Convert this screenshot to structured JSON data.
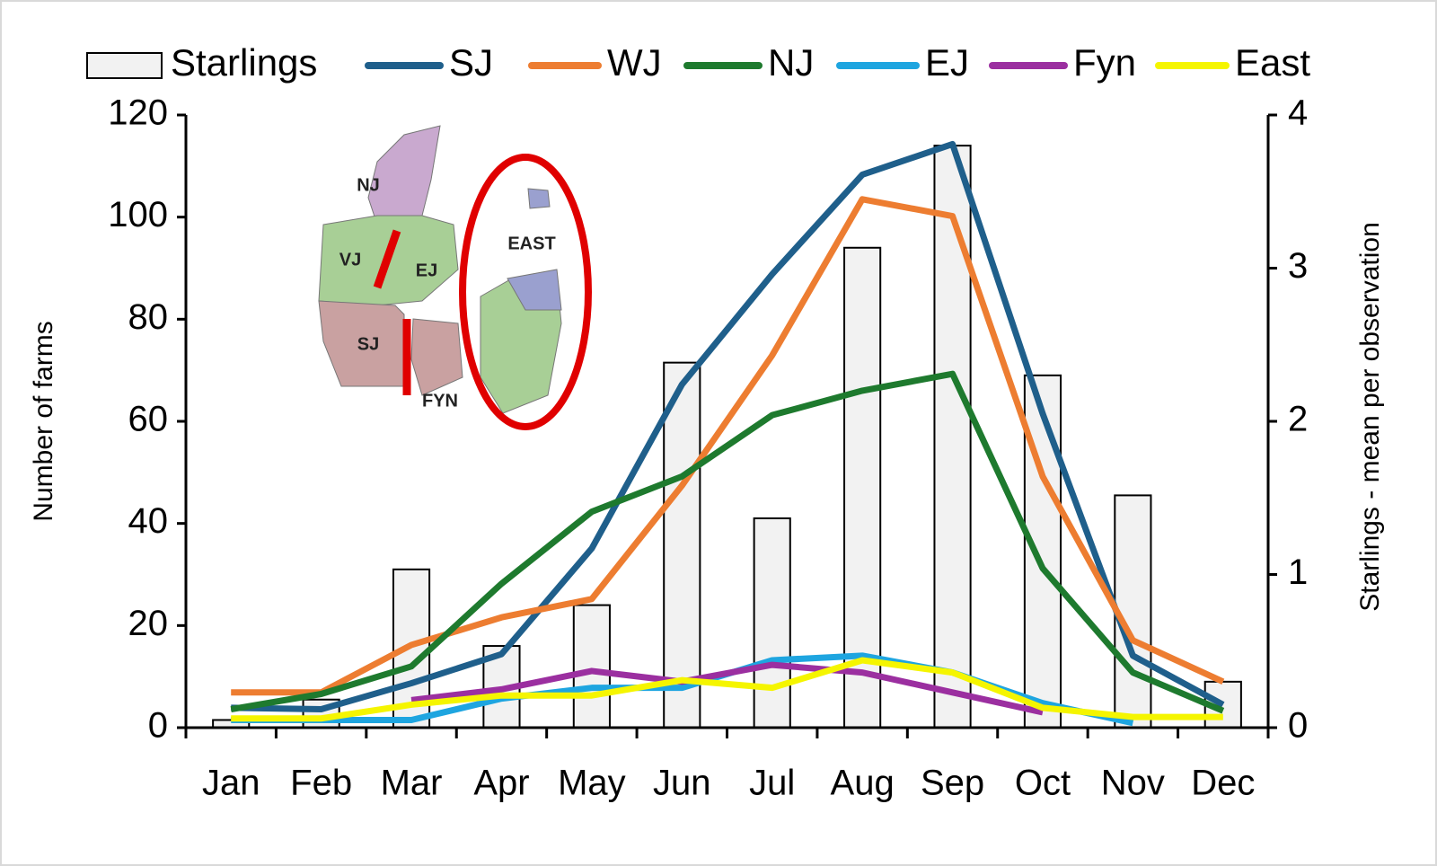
{
  "chart_data": {
    "type": "bar-line",
    "ylabel": "Number of farms",
    "y2label": "Starlings - mean per observation",
    "categories": [
      "Jan",
      "Feb",
      "Mar",
      "Apr",
      "May",
      "Jun",
      "Jul",
      "Aug",
      "Sep",
      "Oct",
      "Nov",
      "Dec"
    ],
    "bar_series": {
      "name": "Starlings",
      "color": "#f2f2f2",
      "values": [
        1.5,
        5.5,
        31,
        16,
        24,
        71.5,
        41,
        94,
        114,
        69,
        45.5,
        9
      ]
    },
    "series": [
      {
        "name": "SJ",
        "color": "#1f5f8b",
        "axis": "y2",
        "values": [
          0.13,
          0.12,
          0.29,
          0.48,
          1.17,
          2.24,
          2.96,
          3.61,
          3.81,
          2.05,
          0.47,
          0.15
        ]
      },
      {
        "name": "WJ",
        "color": "#ed7d31",
        "axis": "y2",
        "values": [
          0.23,
          0.23,
          0.54,
          0.72,
          0.84,
          1.58,
          2.43,
          3.45,
          3.34,
          1.64,
          0.57,
          0.3
        ]
      },
      {
        "name": "NJ",
        "color": "#1e7a2e",
        "axis": "y2",
        "values": [
          0.12,
          0.22,
          0.4,
          0.94,
          1.41,
          1.64,
          2.04,
          2.2,
          2.31,
          1.04,
          0.36,
          0.11
        ]
      },
      {
        "name": "EJ",
        "color": "#1ea5e0",
        "axis": "y2",
        "values": [
          0.05,
          0.05,
          0.05,
          0.19,
          0.26,
          0.26,
          0.44,
          0.47,
          0.36,
          0.16,
          0.03,
          null
        ]
      },
      {
        "name": "Fyn",
        "color": "#9b2fa0",
        "axis": "y2",
        "values": [
          null,
          null,
          0.18,
          0.25,
          0.37,
          0.3,
          0.41,
          0.36,
          0.23,
          0.1,
          null,
          null
        ]
      },
      {
        "name": "East",
        "color": "#f5f500",
        "axis": "y2",
        "values": [
          0.06,
          0.06,
          0.15,
          0.21,
          0.21,
          0.31,
          0.26,
          0.44,
          0.36,
          0.13,
          0.07,
          0.07
        ]
      }
    ],
    "ylim": [
      0,
      120
    ],
    "yticks": [
      0,
      20,
      40,
      60,
      80,
      100,
      120
    ],
    "y2lim": [
      0,
      4
    ],
    "y2ticks": [
      0,
      1,
      2,
      3,
      4
    ],
    "legend": "top",
    "map_labels": [
      "NJ",
      "VJ",
      "EJ",
      "SJ",
      "FYN",
      "EAST"
    ]
  }
}
